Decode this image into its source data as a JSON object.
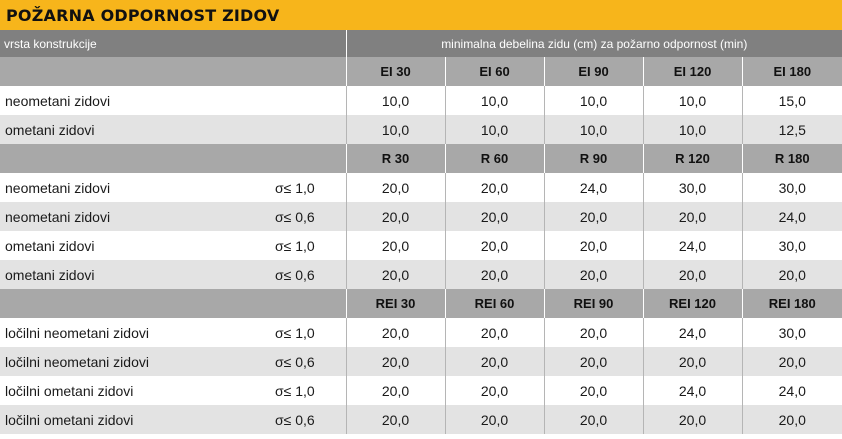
{
  "title": "POŽARNA ODPORNOST ZIDOV",
  "header": {
    "col1": "vrsta konstrukcije",
    "span": "minimalna debelina zidu (cm) za požarno odpornost (min)"
  },
  "sections": [
    {
      "classes": [
        "EI 30",
        "EI 60",
        "EI 90",
        "EI 120",
        "EI 180"
      ],
      "rows": [
        {
          "label": "neometani zidovi",
          "sigma": "",
          "values": [
            "10,0",
            "10,0",
            "10,0",
            "10,0",
            "15,0"
          ]
        },
        {
          "label": "ometani zidovi",
          "sigma": "",
          "values": [
            "10,0",
            "10,0",
            "10,0",
            "10,0",
            "12,5"
          ]
        }
      ]
    },
    {
      "classes": [
        "R 30",
        "R 60",
        "R 90",
        "R 120",
        "R 180"
      ],
      "rows": [
        {
          "label": "neometani zidovi",
          "sigma": "σ≤ 1,0",
          "values": [
            "20,0",
            "20,0",
            "24,0",
            "30,0",
            "30,0"
          ]
        },
        {
          "label": "neometani zidovi",
          "sigma": "σ≤ 0,6",
          "values": [
            "20,0",
            "20,0",
            "20,0",
            "20,0",
            "24,0"
          ]
        },
        {
          "label": "ometani zidovi",
          "sigma": "σ≤ 1,0",
          "values": [
            "20,0",
            "20,0",
            "20,0",
            "24,0",
            "30,0"
          ]
        },
        {
          "label": "ometani zidovi",
          "sigma": "σ≤ 0,6",
          "values": [
            "20,0",
            "20,0",
            "20,0",
            "20,0",
            "20,0"
          ]
        }
      ]
    },
    {
      "classes": [
        "REI 30",
        "REI 60",
        "REI 90",
        "REI 120",
        "REI 180"
      ],
      "rows": [
        {
          "label": "ločilni neometani zidovi",
          "sigma": "σ≤ 1,0",
          "values": [
            "20,0",
            "20,0",
            "20,0",
            "24,0",
            "30,0"
          ]
        },
        {
          "label": "ločilni neometani zidovi",
          "sigma": "σ≤ 0,6",
          "values": [
            "20,0",
            "20,0",
            "20,0",
            "20,0",
            "20,0"
          ]
        },
        {
          "label": "ločilni ometani zidovi",
          "sigma": "σ≤ 1,0",
          "values": [
            "20,0",
            "20,0",
            "20,0",
            "24,0",
            "24,0"
          ]
        },
        {
          "label": "ločilni ometani zidovi",
          "sigma": "σ≤ 0,6",
          "values": [
            "20,0",
            "20,0",
            "20,0",
            "20,0",
            "20,0"
          ]
        }
      ]
    }
  ],
  "colors": {
    "accent": "#f7b51b",
    "header_gray": "#808080",
    "subheader_gray": "#a8a8a8",
    "row_alt": "#e3e3e3"
  }
}
